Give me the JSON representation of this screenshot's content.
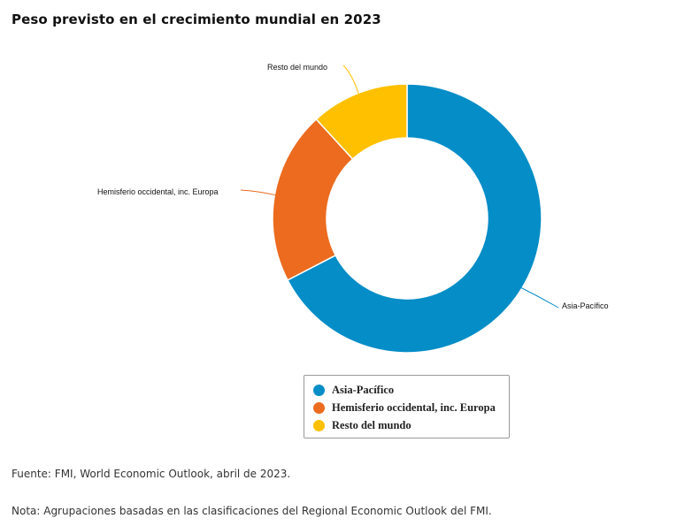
{
  "chart_data": {
    "type": "pie",
    "variant": "donut",
    "title": "Peso previsto en el crecimiento mundial en 2023",
    "unit": "percent",
    "slices": [
      {
        "label": "Asia-Pacífico",
        "value": 67.4,
        "color": "#058DC7"
      },
      {
        "label": "Hemisferio occidental, inc. Europa",
        "value": 20.8,
        "color": "#EC6B1E"
      },
      {
        "label": "Resto del mundo",
        "value": 11.8,
        "color": "#FFC000"
      }
    ],
    "start_angle_deg": 0,
    "direction": "clockwise",
    "data_labels_shown": true,
    "data_values_printed": false,
    "legend": {
      "position": "bottom",
      "entries": [
        "Asia-Pacífico",
        "Hemisferio occidental, inc. Europa",
        "Resto del mundo"
      ]
    }
  },
  "footer": {
    "source": "Fuente: FMI, World Economic Outlook, abril de 2023.",
    "note": "Nota: Agrupaciones basadas en las clasificaciones del Regional Economic Outlook del FMI."
  }
}
